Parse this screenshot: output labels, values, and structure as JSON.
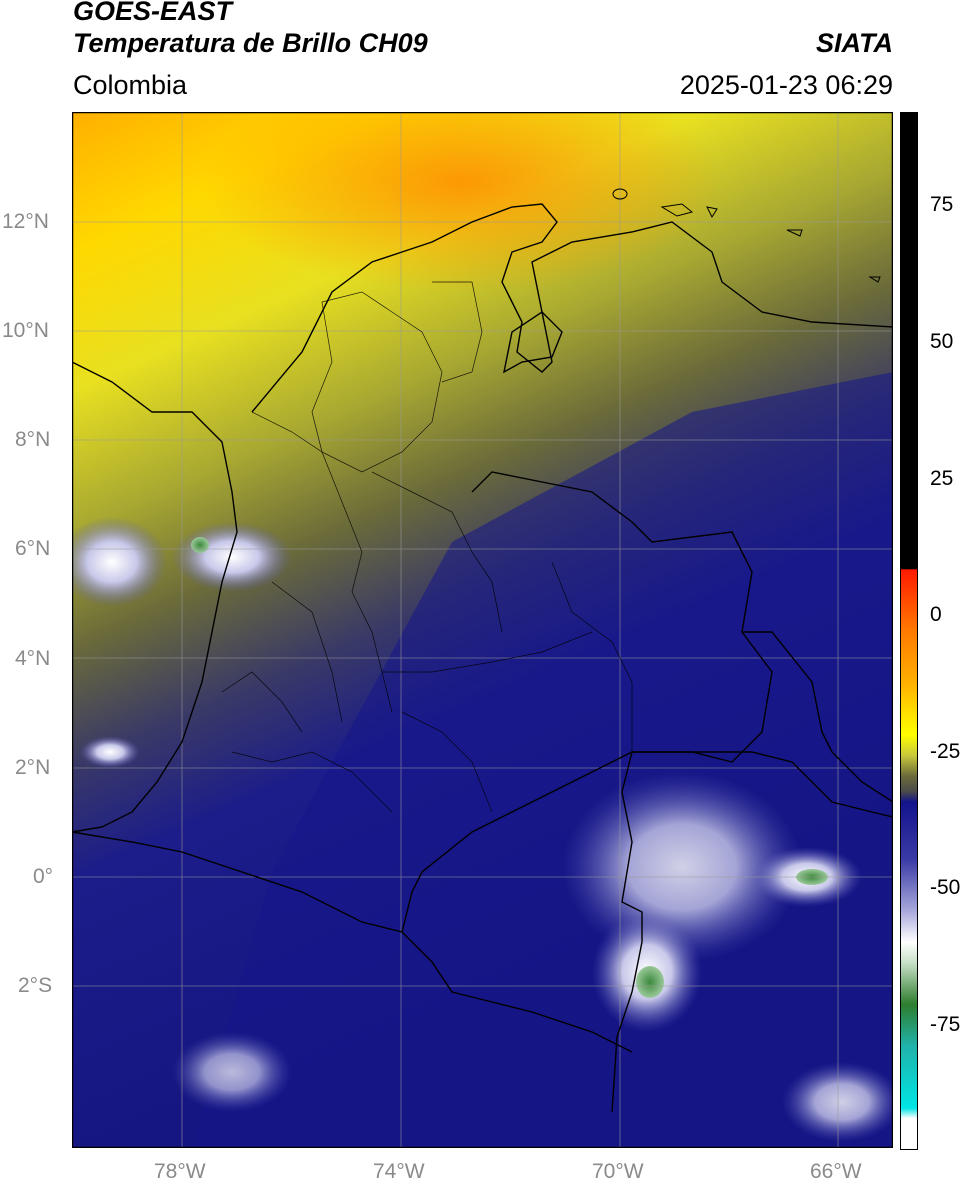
{
  "header": {
    "satellite": "GOES-EAST",
    "product": "Temperatura de Brillo CH09",
    "region": "Colombia",
    "organization": "SIATA",
    "timestamp": "2025-01-23 06:29"
  },
  "map": {
    "lon_range": [
      -80,
      -65
    ],
    "lat_range": [
      -5,
      14
    ],
    "lat_ticks": [
      "12°N",
      "10°N",
      "8°N",
      "6°N",
      "4°N",
      "2°N",
      "0°",
      "2°S"
    ],
    "lon_ticks": [
      "78°W",
      "74°W",
      "70°W",
      "66°W"
    ],
    "gridlines": true
  },
  "colorbar": {
    "ticks": [
      "75",
      "50",
      "25",
      "0",
      "-25",
      "-50",
      "-75"
    ],
    "range": [
      -100,
      90
    ],
    "colors": {
      "top": "#000000",
      "red": "#ff1a00",
      "orange": "#ff9900",
      "yellow": "#ffff00",
      "olive": "#6b6b2a",
      "gray": "#555555",
      "navy": "#14148c",
      "blue": "#5a5ab4",
      "white": "#ffffff",
      "green": "#2e7d2e",
      "teal": "#20b2aa",
      "cyan": "#00e5e5"
    }
  }
}
